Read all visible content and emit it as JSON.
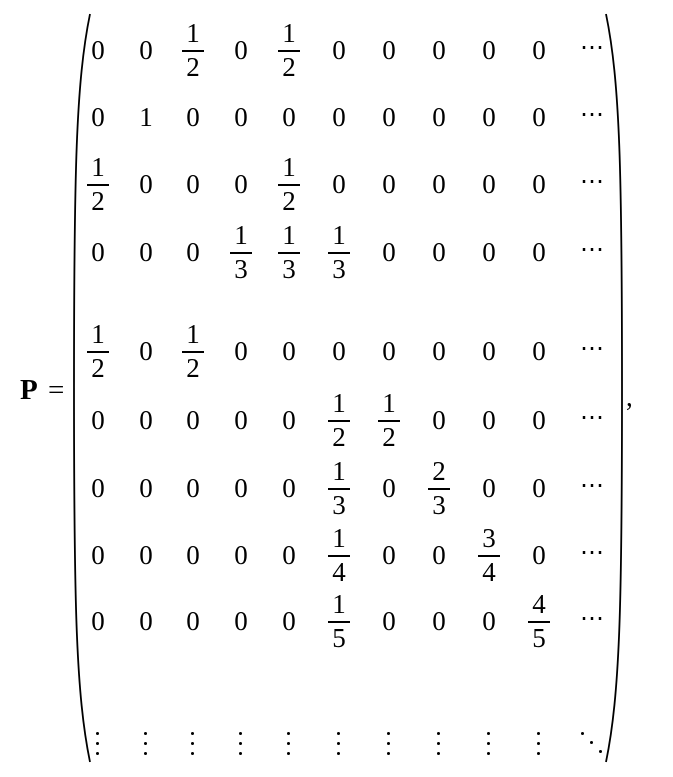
{
  "equation": {
    "lhs_symbol": "P",
    "equals": "=",
    "trailing_punct": ",",
    "rows": [
      [
        "0",
        "0",
        "1/2",
        "0",
        "1/2",
        "0",
        "0",
        "0",
        "0",
        "0",
        "⋯"
      ],
      [
        "0",
        "1",
        "0",
        "0",
        "0",
        "0",
        "0",
        "0",
        "0",
        "0",
        "⋯"
      ],
      [
        "1/2",
        "0",
        "0",
        "0",
        "1/2",
        "0",
        "0",
        "0",
        "0",
        "0",
        "⋯"
      ],
      [
        "0",
        "0",
        "0",
        "1/3",
        "1/3",
        "1/3",
        "0",
        "0",
        "0",
        "0",
        "⋯"
      ],
      [
        "1/2",
        "0",
        "1/2",
        "0",
        "0",
        "0",
        "0",
        "0",
        "0",
        "0",
        "⋯"
      ],
      [
        "0",
        "0",
        "0",
        "0",
        "0",
        "1/2",
        "1/2",
        "0",
        "0",
        "0",
        "⋯"
      ],
      [
        "0",
        "0",
        "0",
        "0",
        "0",
        "1/3",
        "0",
        "2/3",
        "0",
        "0",
        "⋯"
      ],
      [
        "0",
        "0",
        "0",
        "0",
        "0",
        "1/4",
        "0",
        "0",
        "3/4",
        "0",
        "⋯"
      ],
      [
        "0",
        "0",
        "0",
        "0",
        "0",
        "1/5",
        "0",
        "0",
        "0",
        "4/5",
        "⋯"
      ],
      [
        "⋮",
        "⋮",
        "⋮",
        "⋮",
        "⋮",
        "⋮",
        "⋮",
        "⋮",
        "⋮",
        "⋮",
        "⋱"
      ]
    ]
  }
}
